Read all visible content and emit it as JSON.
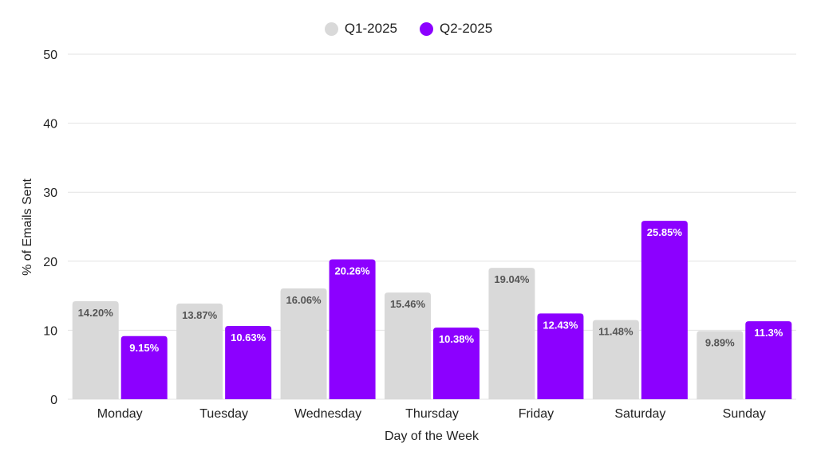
{
  "chart_data": {
    "type": "bar",
    "title": "",
    "xlabel": "Day of the Week",
    "ylabel": "% of Emails Sent",
    "ylim": [
      0,
      50
    ],
    "yticks": [
      0,
      10,
      20,
      30,
      40,
      50
    ],
    "categories": [
      "Monday",
      "Tuesday",
      "Wednesday",
      "Thursday",
      "Friday",
      "Saturday",
      "Sunday"
    ],
    "series": [
      {
        "name": "Q1-2025",
        "color": "#d9d9d9",
        "label_color": "#555555",
        "values": [
          14.2,
          13.87,
          16.06,
          15.46,
          19.04,
          11.48,
          9.89
        ],
        "labels": [
          "14.20%",
          "13.87%",
          "16.06%",
          "15.46%",
          "19.04%",
          "11.48%",
          "9.89%"
        ]
      },
      {
        "name": "Q2-2025",
        "color": "#8c00ff",
        "label_color": "#ffffff",
        "values": [
          9.15,
          10.63,
          20.26,
          10.38,
          12.43,
          25.85,
          11.3
        ],
        "labels": [
          "9.15%",
          "10.63%",
          "20.26%",
          "10.38%",
          "12.43%",
          "25.85%",
          "11.3%"
        ]
      }
    ],
    "legend_position": "top-center",
    "grid": true
  }
}
